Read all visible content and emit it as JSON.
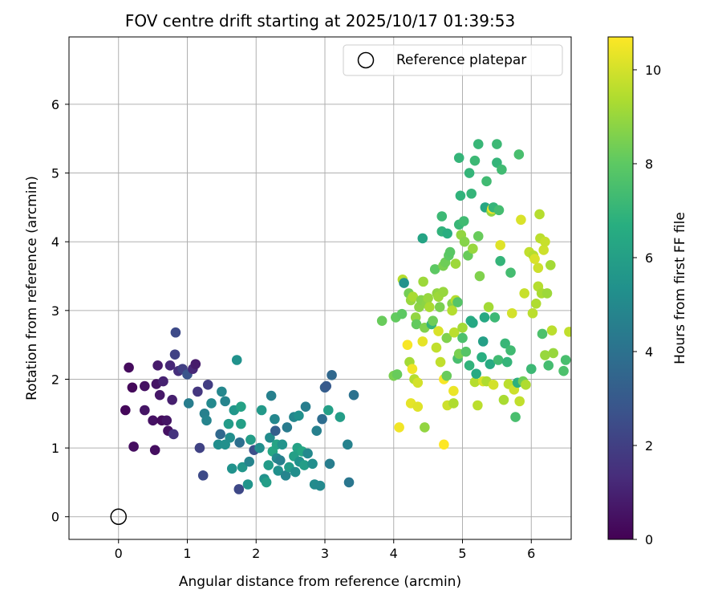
{
  "chart_data": {
    "type": "scatter",
    "title": "FOV centre drift starting at 2025/10/17 01:39:53",
    "xlabel": "Angular distance from reference (arcmin)",
    "ylabel": "Rotation from reference (arcmin)",
    "xlim": [
      -0.72,
      6.58
    ],
    "ylim": [
      -0.33,
      6.98
    ],
    "xticks": [
      0,
      1,
      2,
      3,
      4,
      5,
      6
    ],
    "yticks": [
      0,
      1,
      2,
      3,
      4,
      5,
      6
    ],
    "grid": true,
    "legend": {
      "position": "top-right",
      "entries": [
        "Reference platepar"
      ]
    },
    "reference_point": {
      "x": 0,
      "y": 0
    },
    "colorbar": {
      "label": "Hours from first FF file",
      "range": [
        0,
        10.7
      ],
      "ticks": [
        0,
        2,
        4,
        6,
        8,
        10
      ],
      "colormap": "viridis"
    },
    "points": [
      [
        0.1,
        1.55,
        0.2
      ],
      [
        0.15,
        2.17,
        0.3
      ],
      [
        0.2,
        1.88,
        0.2
      ],
      [
        0.22,
        1.02,
        0.4
      ],
      [
        0.38,
        1.9,
        0.5
      ],
      [
        0.38,
        1.55,
        0.6
      ],
      [
        0.5,
        1.4,
        0.5
      ],
      [
        0.53,
        0.97,
        0.4
      ],
      [
        0.55,
        1.93,
        0.6
      ],
      [
        0.57,
        2.2,
        0.8
      ],
      [
        0.6,
        1.77,
        0.7
      ],
      [
        0.63,
        1.4,
        0.3
      ],
      [
        0.65,
        1.97,
        1.0
      ],
      [
        0.7,
        1.4,
        0.6
      ],
      [
        0.72,
        1.25,
        0.5
      ],
      [
        0.75,
        2.2,
        1.2
      ],
      [
        0.78,
        1.7,
        0.9
      ],
      [
        0.8,
        1.2,
        1.6
      ],
      [
        0.82,
        2.36,
        2.1
      ],
      [
        0.83,
        2.68,
        2.4
      ],
      [
        0.87,
        2.12,
        1.4
      ],
      [
        0.93,
        2.15,
        2.0
      ],
      [
        1.0,
        2.07,
        2.8
      ],
      [
        1.02,
        1.65,
        4.5
      ],
      [
        1.08,
        2.15,
        1.2
      ],
      [
        1.12,
        2.22,
        0.8
      ],
      [
        1.15,
        1.82,
        1.7
      ],
      [
        1.18,
        1.0,
        2.1
      ],
      [
        1.23,
        0.6,
        2.4
      ],
      [
        1.25,
        1.5,
        4.6
      ],
      [
        1.28,
        1.4,
        4.8
      ],
      [
        1.3,
        1.92,
        1.9
      ],
      [
        1.35,
        1.65,
        5.0
      ],
      [
        1.45,
        1.05,
        5.2
      ],
      [
        1.48,
        1.2,
        3.6
      ],
      [
        1.5,
        1.82,
        4.9
      ],
      [
        1.55,
        1.68,
        4.8
      ],
      [
        1.55,
        1.05,
        5.3
      ],
      [
        1.6,
        1.35,
        5.8
      ],
      [
        1.62,
        1.15,
        5.2
      ],
      [
        1.65,
        0.7,
        5.4
      ],
      [
        1.68,
        1.55,
        5.6
      ],
      [
        1.72,
        2.28,
        5.4
      ],
      [
        1.75,
        0.4,
        2.3
      ],
      [
        1.76,
        1.08,
        3.9
      ],
      [
        1.78,
        1.6,
        6.1
      ],
      [
        1.78,
        1.35,
        6.0
      ],
      [
        1.8,
        0.72,
        5.6
      ],
      [
        1.88,
        0.47,
        5.5
      ],
      [
        1.9,
        0.8,
        4.8
      ],
      [
        1.92,
        1.12,
        5.9
      ],
      [
        1.97,
        0.97,
        2.6
      ],
      [
        2.05,
        1.0,
        5.2
      ],
      [
        2.08,
        1.55,
        5.7
      ],
      [
        2.12,
        0.55,
        5.4
      ],
      [
        2.15,
        0.5,
        5.9
      ],
      [
        2.18,
        0.75,
        5.8
      ],
      [
        2.2,
        1.15,
        5.1
      ],
      [
        2.22,
        1.76,
        4.6
      ],
      [
        2.24,
        0.95,
        6.3
      ],
      [
        2.27,
        1.42,
        4.9
      ],
      [
        2.28,
        1.25,
        3.2
      ],
      [
        2.3,
        0.85,
        5.0
      ],
      [
        2.3,
        1.05,
        6.2
      ],
      [
        2.32,
        0.67,
        5.3
      ],
      [
        2.35,
        0.82,
        4.6
      ],
      [
        2.38,
        1.05,
        5.5
      ],
      [
        2.43,
        0.6,
        4.8
      ],
      [
        2.45,
        1.3,
        4.4
      ],
      [
        2.48,
        0.72,
        5.8
      ],
      [
        2.55,
        0.88,
        6.0
      ],
      [
        2.55,
        1.45,
        4.9
      ],
      [
        2.57,
        0.65,
        5.2
      ],
      [
        2.6,
        1.0,
        6.1
      ],
      [
        2.62,
        1.47,
        5.3
      ],
      [
        2.63,
        0.8,
        5.4
      ],
      [
        2.67,
        0.95,
        6.3
      ],
      [
        2.7,
        0.75,
        5.9
      ],
      [
        2.72,
        1.6,
        4.5
      ],
      [
        2.75,
        0.92,
        5.0
      ],
      [
        2.82,
        0.77,
        5.2
      ],
      [
        2.85,
        0.47,
        5.1
      ],
      [
        2.88,
        1.25,
        4.6
      ],
      [
        2.93,
        0.45,
        5.0
      ],
      [
        2.96,
        1.42,
        3.8
      ],
      [
        3.0,
        1.88,
        3.2
      ],
      [
        3.02,
        1.9,
        3.0
      ],
      [
        3.05,
        1.55,
        6.0
      ],
      [
        3.07,
        0.77,
        4.5
      ],
      [
        3.1,
        2.06,
        3.6
      ],
      [
        3.22,
        1.45,
        5.9
      ],
      [
        3.33,
        1.05,
        4.7
      ],
      [
        3.35,
        0.5,
        4.2
      ],
      [
        3.42,
        1.77,
        4.0
      ],
      [
        3.83,
        2.85,
        8.2
      ],
      [
        4.0,
        2.05,
        8.5
      ],
      [
        4.03,
        2.9,
        8.1
      ],
      [
        4.05,
        2.07,
        8.2
      ],
      [
        4.08,
        1.3,
        10.5
      ],
      [
        4.12,
        2.95,
        8.0
      ],
      [
        4.13,
        3.45,
        9.5
      ],
      [
        4.15,
        3.4,
        5.4
      ],
      [
        4.2,
        2.5,
        10.6
      ],
      [
        4.22,
        3.25,
        8.4
      ],
      [
        4.23,
        2.25,
        9.2
      ],
      [
        4.25,
        3.15,
        9.0
      ],
      [
        4.25,
        1.65,
        10.3
      ],
      [
        4.27,
        2.15,
        10.5
      ],
      [
        4.28,
        3.2,
        9.3
      ],
      [
        4.3,
        2.0,
        9.5
      ],
      [
        4.32,
        2.9,
        8.9
      ],
      [
        4.33,
        2.8,
        8.1
      ],
      [
        4.35,
        1.6,
        10.2
      ],
      [
        4.35,
        1.95,
        10.0
      ],
      [
        4.37,
        3.05,
        8.8
      ],
      [
        4.4,
        3.15,
        8.7
      ],
      [
        4.42,
        4.05,
        6.2
      ],
      [
        4.42,
        2.55,
        10.3
      ],
      [
        4.43,
        3.42,
        9.1
      ],
      [
        4.45,
        2.75,
        8.6
      ],
      [
        4.45,
        1.3,
        8.9
      ],
      [
        4.48,
        3.1,
        8.8
      ],
      [
        4.5,
        3.18,
        9.0
      ],
      [
        4.52,
        3.05,
        9.3
      ],
      [
        4.55,
        2.8,
        7.0
      ],
      [
        4.57,
        2.85,
        8.3
      ],
      [
        4.6,
        3.6,
        8.0
      ],
      [
        4.62,
        2.46,
        9.7
      ],
      [
        4.63,
        3.25,
        8.9
      ],
      [
        4.65,
        2.7,
        10.1
      ],
      [
        4.65,
        3.2,
        9.1
      ],
      [
        4.67,
        3.05,
        8.5
      ],
      [
        4.68,
        2.25,
        9.7
      ],
      [
        4.7,
        4.37,
        7.2
      ],
      [
        4.7,
        4.15,
        6.9
      ],
      [
        4.72,
        3.65,
        8.5
      ],
      [
        4.72,
        3.27,
        9.0
      ],
      [
        4.73,
        2.0,
        10.6
      ],
      [
        4.73,
        1.05,
        10.7
      ],
      [
        4.75,
        3.7,
        8.3
      ],
      [
        4.77,
        2.6,
        8.6
      ],
      [
        4.77,
        2.05,
        8.2
      ],
      [
        4.78,
        1.62,
        9.9
      ],
      [
        4.78,
        4.12,
        6.7
      ],
      [
        4.8,
        3.8,
        8.0
      ],
      [
        4.82,
        3.85,
        7.9
      ],
      [
        4.85,
        3.1,
        8.7
      ],
      [
        4.85,
        3.0,
        9.5
      ],
      [
        4.87,
        1.83,
        10.4
      ],
      [
        4.87,
        1.65,
        9.4
      ],
      [
        4.88,
        2.68,
        9.6
      ],
      [
        4.9,
        3.68,
        9.1
      ],
      [
        4.9,
        3.15,
        9.5
      ],
      [
        4.93,
        2.3,
        7.5
      ],
      [
        4.93,
        3.12,
        7.8
      ],
      [
        4.95,
        4.25,
        7.1
      ],
      [
        4.95,
        2.37,
        8.5
      ],
      [
        4.95,
        5.22,
        7.0
      ],
      [
        4.97,
        4.67,
        6.9
      ],
      [
        4.98,
        4.1,
        8.9
      ],
      [
        5.0,
        2.75,
        9.2
      ],
      [
        5.0,
        2.6,
        7.6
      ],
      [
        5.02,
        4.3,
        7.3
      ],
      [
        5.03,
        4.0,
        8.7
      ],
      [
        5.05,
        2.4,
        7.8
      ],
      [
        5.08,
        3.8,
        8.2
      ],
      [
        5.1,
        5.0,
        7.0
      ],
      [
        5.1,
        2.2,
        6.9
      ],
      [
        5.12,
        2.85,
        6.6
      ],
      [
        5.13,
        4.7,
        7.0
      ],
      [
        5.15,
        3.9,
        9.0
      ],
      [
        5.15,
        2.82,
        6.4
      ],
      [
        5.18,
        5.18,
        7.2
      ],
      [
        5.18,
        1.96,
        9.5
      ],
      [
        5.2,
        2.08,
        6.5
      ],
      [
        5.22,
        1.62,
        9.6
      ],
      [
        5.23,
        4.08,
        8.2
      ],
      [
        5.23,
        5.42,
        7.1
      ],
      [
        5.25,
        3.5,
        8.6
      ],
      [
        5.28,
        2.32,
        6.7
      ],
      [
        5.3,
        1.97,
        10.1
      ],
      [
        5.3,
        2.55,
        6.0
      ],
      [
        5.32,
        2.9,
        6.4
      ],
      [
        5.33,
        4.5,
        6.3
      ],
      [
        5.35,
        4.88,
        7.3
      ],
      [
        5.35,
        1.97,
        9.4
      ],
      [
        5.38,
        3.05,
        9.2
      ],
      [
        5.4,
        2.22,
        6.5
      ],
      [
        5.42,
        4.44,
        8.9
      ],
      [
        5.43,
        4.48,
        10.5
      ],
      [
        5.45,
        4.5,
        7.0
      ],
      [
        5.45,
        1.92,
        10.0
      ],
      [
        5.47,
        2.9,
        7.2
      ],
      [
        5.5,
        5.15,
        7.0
      ],
      [
        5.5,
        5.42,
        7.2
      ],
      [
        5.52,
        2.28,
        7.3
      ],
      [
        5.53,
        4.46,
        7.4
      ],
      [
        5.55,
        3.95,
        10.2
      ],
      [
        5.55,
        3.72,
        7.0
      ],
      [
        5.57,
        5.05,
        7.3
      ],
      [
        5.6,
        1.7,
        9.3
      ],
      [
        5.62,
        2.52,
        7.1
      ],
      [
        5.65,
        2.25,
        7.0
      ],
      [
        5.67,
        1.93,
        9.6
      ],
      [
        5.7,
        3.55,
        7.4
      ],
      [
        5.7,
        2.42,
        7.3
      ],
      [
        5.72,
        2.96,
        10.0
      ],
      [
        5.75,
        1.85,
        9.9
      ],
      [
        5.77,
        1.45,
        7.5
      ],
      [
        5.8,
        1.95,
        6.8
      ],
      [
        5.82,
        5.27,
        7.5
      ],
      [
        5.83,
        1.68,
        9.7
      ],
      [
        5.85,
        4.32,
        10.1
      ],
      [
        5.88,
        1.97,
        8.3
      ],
      [
        5.9,
        3.25,
        9.8
      ],
      [
        5.92,
        1.92,
        9.4
      ],
      [
        5.97,
        3.85,
        9.7
      ],
      [
        6.0,
        2.15,
        7.2
      ],
      [
        6.02,
        2.96,
        9.6
      ],
      [
        6.03,
        3.8,
        9.5
      ],
      [
        6.05,
        3.75,
        10.1
      ],
      [
        6.07,
        3.1,
        9.4
      ],
      [
        6.1,
        3.35,
        9.5
      ],
      [
        6.1,
        3.62,
        9.9
      ],
      [
        6.12,
        4.4,
        9.5
      ],
      [
        6.13,
        4.05,
        9.6
      ],
      [
        6.15,
        3.25,
        9.3
      ],
      [
        6.16,
        2.66,
        7.6
      ],
      [
        6.18,
        3.88,
        9.9
      ],
      [
        6.2,
        4.0,
        9.8
      ],
      [
        6.2,
        2.35,
        9.0
      ],
      [
        6.23,
        3.25,
        9.1
      ],
      [
        6.25,
        2.2,
        7.4
      ],
      [
        6.28,
        3.66,
        9.2
      ],
      [
        6.3,
        2.71,
        9.6
      ],
      [
        6.32,
        2.38,
        9.0
      ],
      [
        6.47,
        2.12,
        7.6
      ],
      [
        6.5,
        2.28,
        7.5
      ],
      [
        6.55,
        2.69,
        9.7
      ]
    ]
  }
}
